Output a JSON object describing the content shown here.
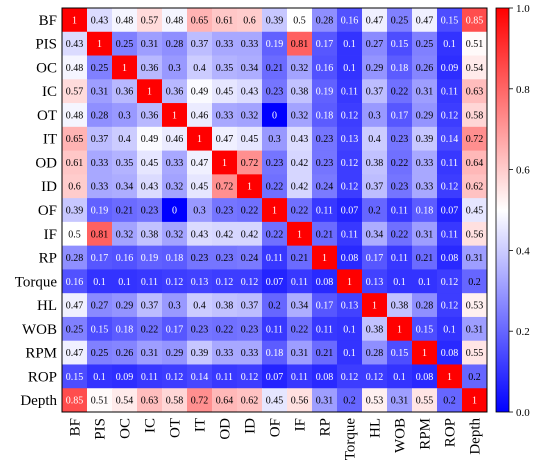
{
  "chart_data": {
    "type": "heatmap",
    "title": "",
    "variables": [
      "BF",
      "PIS",
      "OC",
      "IC",
      "OT",
      "IT",
      "OD",
      "ID",
      "OF",
      "IF",
      "RP",
      "Torque",
      "HL",
      "WOB",
      "RPM",
      "ROP",
      "Depth"
    ],
    "matrix": [
      [
        1,
        0.43,
        0.48,
        0.57,
        0.48,
        0.65,
        0.61,
        0.6,
        0.39,
        0.5,
        0.28,
        0.16,
        0.47,
        0.25,
        0.47,
        0.15,
        0.85
      ],
      [
        0.43,
        1,
        0.25,
        0.31,
        0.28,
        0.37,
        0.33,
        0.33,
        0.19,
        0.81,
        0.17,
        0.1,
        0.27,
        0.15,
        0.25,
        0.1,
        0.51
      ],
      [
        0.48,
        0.25,
        1,
        0.36,
        0.3,
        0.4,
        0.35,
        0.34,
        0.21,
        0.32,
        0.16,
        0.1,
        0.29,
        0.18,
        0.26,
        0.09,
        0.54
      ],
      [
        0.57,
        0.31,
        0.36,
        1,
        0.36,
        0.49,
        0.45,
        0.43,
        0.23,
        0.38,
        0.19,
        0.11,
        0.37,
        0.22,
        0.31,
        0.11,
        0.63
      ],
      [
        0.48,
        0.28,
        0.3,
        0.36,
        1,
        0.46,
        0.33,
        0.32,
        0,
        0.32,
        0.18,
        0.12,
        0.3,
        0.17,
        0.29,
        0.12,
        0.58
      ],
      [
        0.65,
        0.37,
        0.4,
        0.49,
        0.46,
        1,
        0.47,
        0.45,
        0.3,
        0.43,
        0.23,
        0.13,
        0.4,
        0.23,
        0.39,
        0.14,
        0.72
      ],
      [
        0.61,
        0.33,
        0.35,
        0.45,
        0.33,
        0.47,
        1,
        0.72,
        0.23,
        0.42,
        0.23,
        0.12,
        0.38,
        0.22,
        0.33,
        0.11,
        0.64
      ],
      [
        0.6,
        0.33,
        0.34,
        0.43,
        0.32,
        0.45,
        0.72,
        1,
        0.22,
        0.42,
        0.24,
        0.12,
        0.37,
        0.23,
        0.33,
        0.12,
        0.62
      ],
      [
        0.39,
        0.19,
        0.21,
        0.23,
        0,
        0.3,
        0.23,
        0.22,
        1,
        0.22,
        0.11,
        0.07,
        0.2,
        0.11,
        0.18,
        0.07,
        0.45
      ],
      [
        0.5,
        0.81,
        0.32,
        0.38,
        0.32,
        0.43,
        0.42,
        0.42,
        0.22,
        1,
        0.21,
        0.11,
        0.34,
        0.22,
        0.31,
        0.11,
        0.56
      ],
      [
        0.28,
        0.17,
        0.16,
        0.19,
        0.18,
        0.23,
        0.23,
        0.24,
        0.11,
        0.21,
        1,
        0.08,
        0.17,
        0.11,
        0.21,
        0.08,
        0.31
      ],
      [
        0.16,
        0.1,
        0.1,
        0.11,
        0.12,
        0.13,
        0.12,
        0.12,
        0.07,
        0.11,
        0.08,
        1,
        0.13,
        0.1,
        0.1,
        0.12,
        0.2
      ],
      [
        0.47,
        0.27,
        0.29,
        0.37,
        0.3,
        0.4,
        0.38,
        0.37,
        0.2,
        0.34,
        0.17,
        0.13,
        1,
        0.38,
        0.28,
        0.12,
        0.53
      ],
      [
        0.25,
        0.15,
        0.18,
        0.22,
        0.17,
        0.23,
        0.22,
        0.23,
        0.11,
        0.22,
        0.11,
        0.1,
        0.38,
        1,
        0.15,
        0.1,
        0.31
      ],
      [
        0.47,
        0.25,
        0.26,
        0.31,
        0.29,
        0.39,
        0.33,
        0.33,
        0.18,
        0.31,
        0.21,
        0.1,
        0.28,
        0.15,
        1,
        0.08,
        0.55
      ],
      [
        0.15,
        0.1,
        0.09,
        0.11,
        0.12,
        0.14,
        0.11,
        0.12,
        0.07,
        0.11,
        0.08,
        0.12,
        0.12,
        0.1,
        0.08,
        1,
        0.2
      ],
      [
        0.85,
        0.51,
        0.54,
        0.63,
        0.58,
        0.72,
        0.64,
        0.62,
        0.45,
        0.56,
        0.31,
        0.2,
        0.53,
        0.31,
        0.55,
        0.2,
        1
      ]
    ],
    "value_range": [
      0,
      1
    ],
    "colormap": [
      "#0000ff",
      "#ffffff",
      "#ff0000"
    ],
    "colorbar_ticks": [
      "0.0",
      "0.2",
      "0.4",
      "0.6",
      "0.8",
      "1.0"
    ],
    "legend_position": "right"
  }
}
